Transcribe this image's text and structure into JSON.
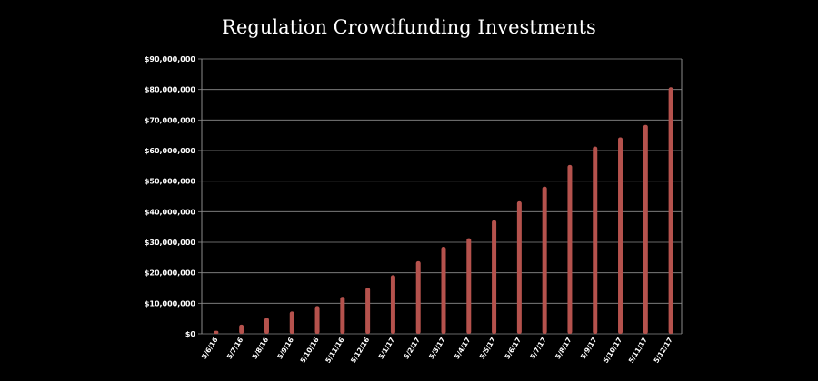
{
  "chart_data": {
    "type": "bar",
    "title": "Regulation Crowdfunding Investments",
    "xlabel": "",
    "ylabel": "",
    "categories": [
      "5/6/16",
      "5/7/16",
      "5/8/16",
      "5/9/16",
      "5/10/16",
      "5/11/16",
      "5/12/16",
      "5/1/17",
      "5/2/17",
      "5/3/17",
      "5/4/17",
      "5/5/17",
      "5/6/17",
      "5/7/17",
      "5/8/17",
      "5/9/17",
      "5/10/17",
      "5/11/17",
      "5/12/17"
    ],
    "values": [
      1000000,
      3000000,
      5200000,
      7300000,
      9100000,
      12100000,
      15100000,
      19200000,
      23800000,
      28500000,
      31300000,
      37200000,
      43400000,
      48200000,
      55300000,
      61300000,
      64300000,
      68400000,
      80700000
    ],
    "ylim": [
      0,
      90000000
    ],
    "y_ticks": [
      "$0",
      "$10,000,000",
      "$20,000,000",
      "$30,000,000",
      "$40,000,000",
      "$50,000,000",
      "$60,000,000",
      "$70,000,000",
      "$80,000,000",
      "$90,000,000"
    ],
    "grid": true,
    "colors": {
      "bar": "#b5524d",
      "background": "#000000",
      "grid": "#8c8c8c",
      "text": "#ffffff"
    }
  }
}
